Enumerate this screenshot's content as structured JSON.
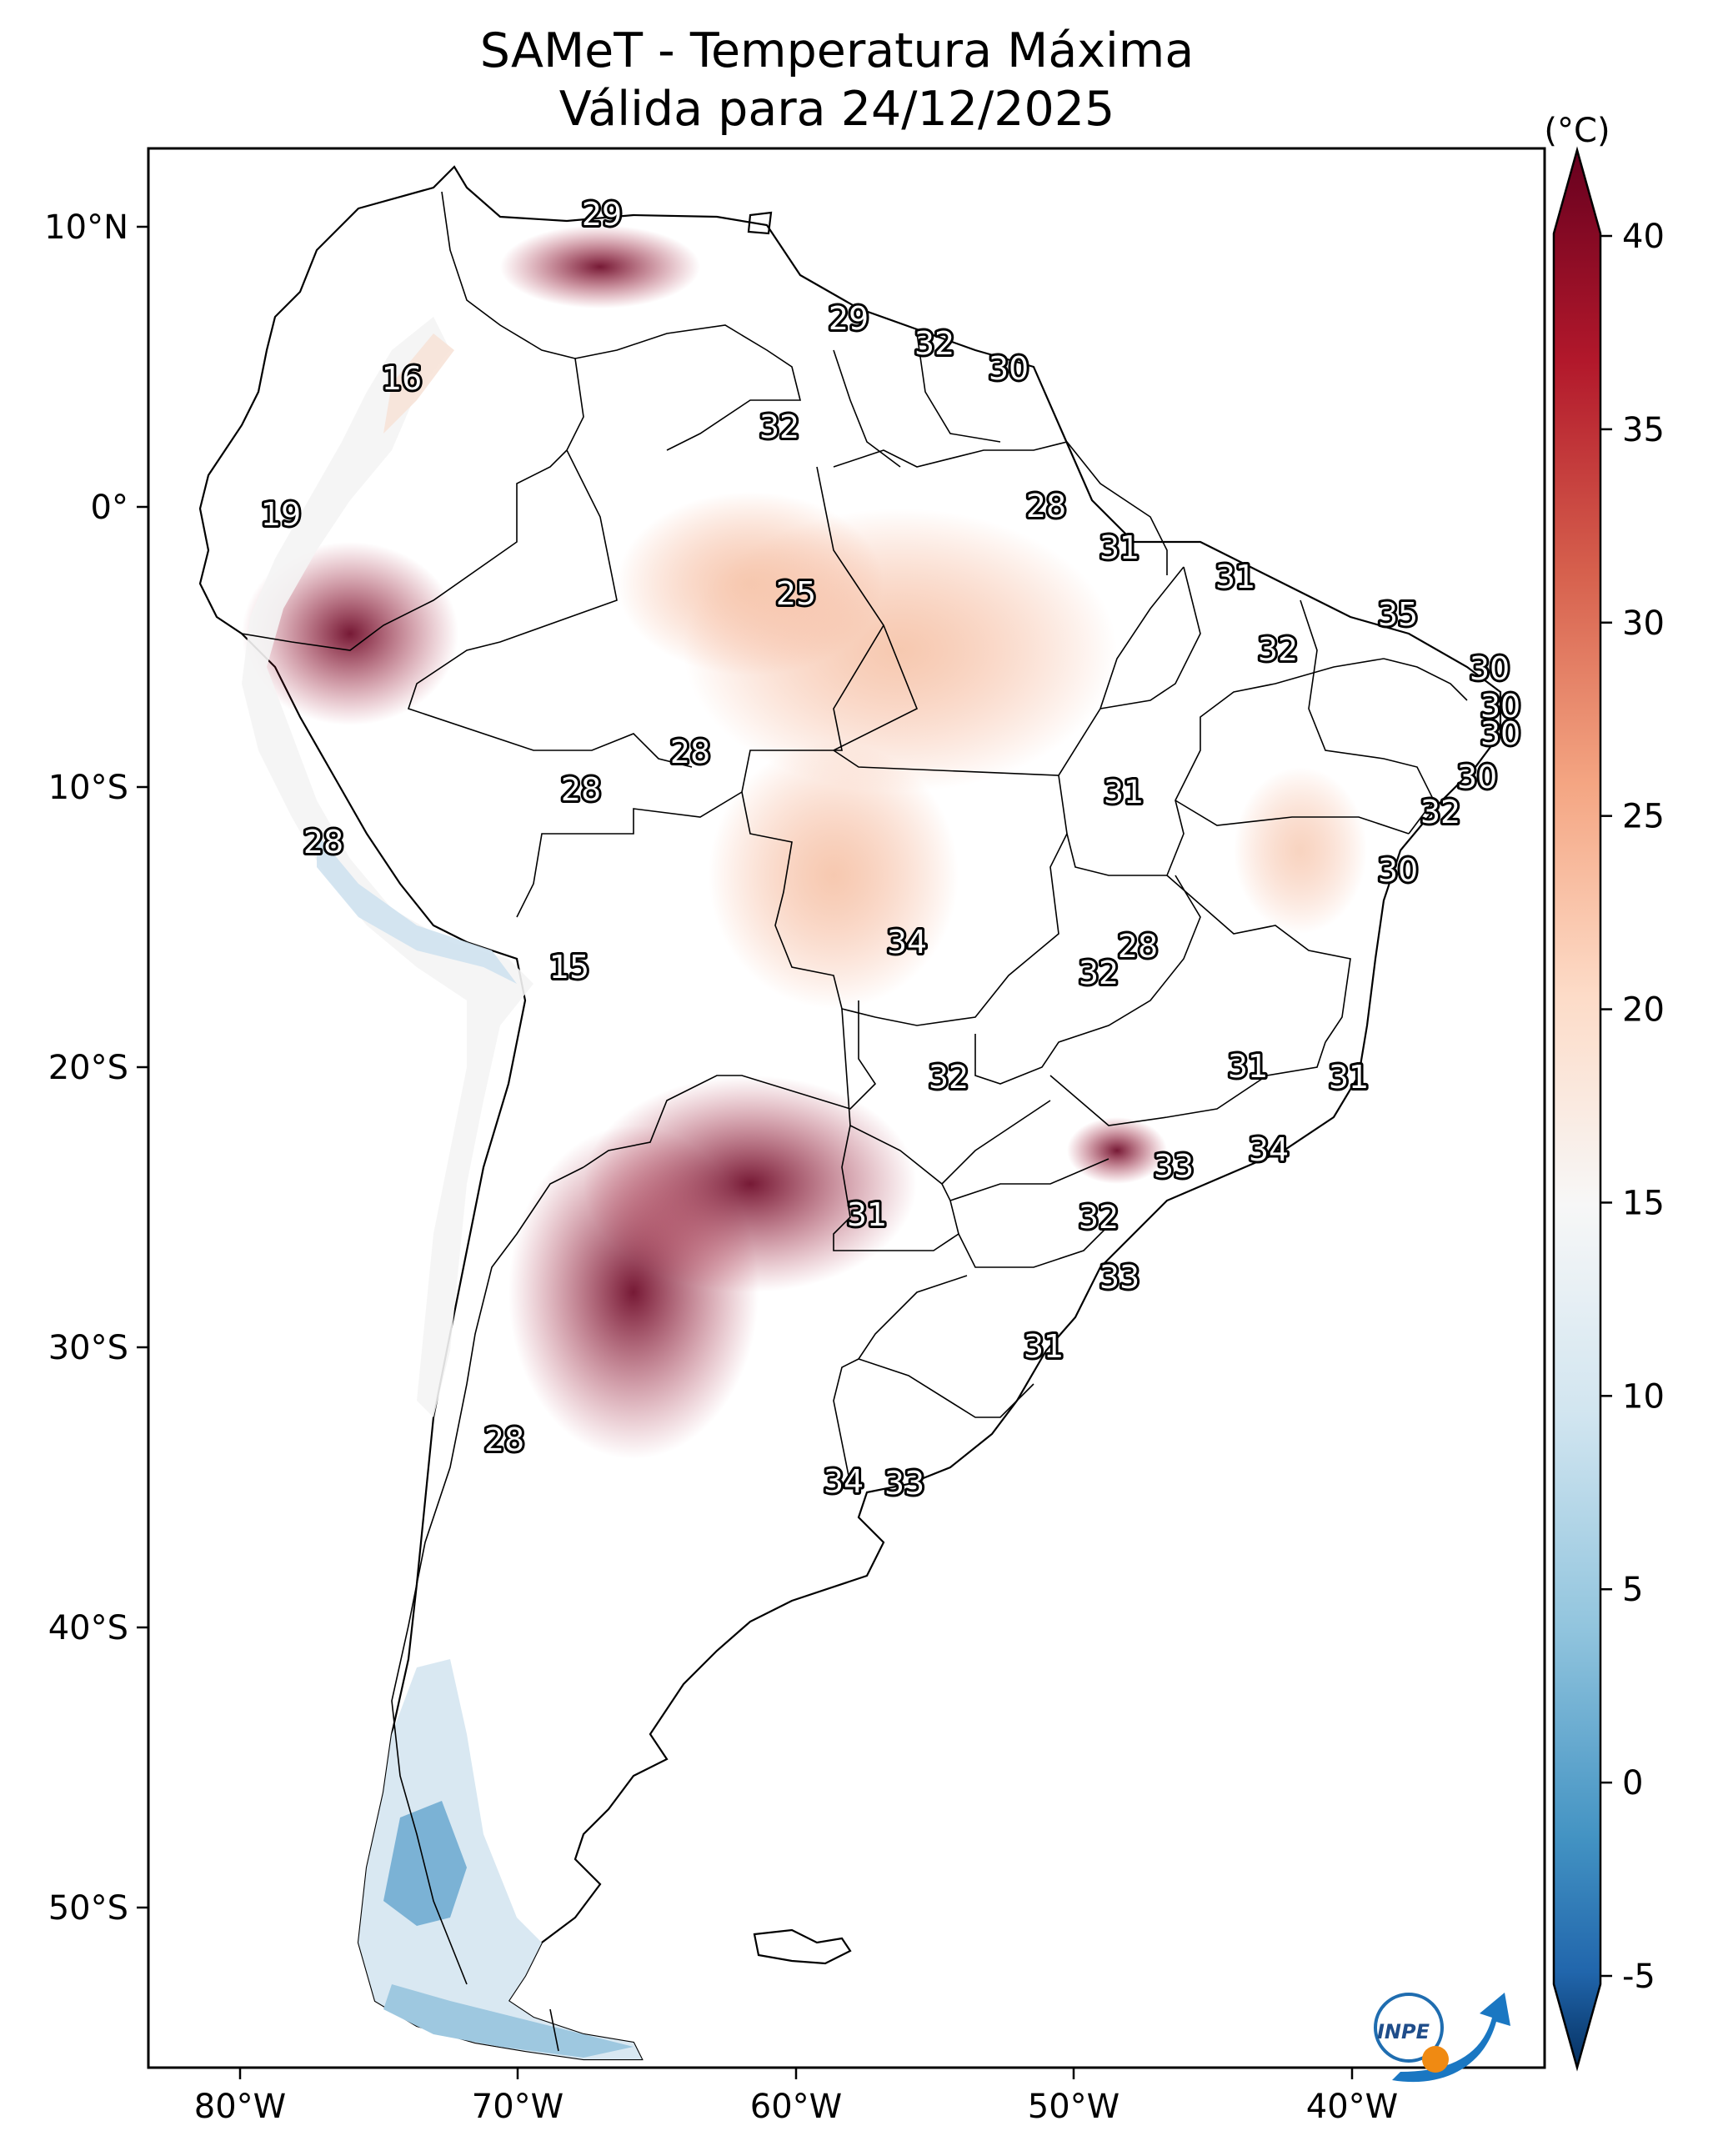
{
  "map": {
    "title_line1": "SAMeT - Temperatura Máxima",
    "title_line2": "Válida para 24/12/2025",
    "lon_ticks": [
      "80°W",
      "70°W",
      "60°W",
      "50°W",
      "40°W"
    ],
    "lat_ticks": [
      "10°N",
      "0°",
      "10°S",
      "20°S",
      "30°S",
      "40°S",
      "50°S"
    ],
    "colorbar": {
      "unit": "(°C)",
      "ticks": [
        "40",
        "35",
        "30",
        "25",
        "20",
        "15",
        "10",
        "5",
        "0",
        "-5"
      ],
      "colors": [
        "#67001f",
        "#b2182b",
        "#d6604d",
        "#f4a582",
        "#fddbc7",
        "#f7f7f7",
        "#d1e5f0",
        "#92c5de",
        "#4393c3",
        "#2166ac",
        "#053061"
      ]
    },
    "labels": [
      {
        "text": "29",
        "name": "caracas"
      },
      {
        "text": "16",
        "name": "bogota"
      },
      {
        "text": "29",
        "name": "georgetown"
      },
      {
        "text": "32",
        "name": "paramaribo"
      },
      {
        "text": "30",
        "name": "cayenne"
      },
      {
        "text": "32",
        "name": "boa-vista"
      },
      {
        "text": "19",
        "name": "quito"
      },
      {
        "text": "28",
        "name": "macapa"
      },
      {
        "text": "31",
        "name": "belem"
      },
      {
        "text": "31",
        "name": "sao-luis"
      },
      {
        "text": "35",
        "name": "fortaleza"
      },
      {
        "text": "25",
        "name": "manaus"
      },
      {
        "text": "32",
        "name": "teresina"
      },
      {
        "text": "30",
        "name": "natal"
      },
      {
        "text": "30",
        "name": "joao-pessoa"
      },
      {
        "text": "30",
        "name": "recife"
      },
      {
        "text": "28",
        "name": "porto-velho"
      },
      {
        "text": "28",
        "name": "rio-branco"
      },
      {
        "text": "31",
        "name": "palmas"
      },
      {
        "text": "30",
        "name": "maceio"
      },
      {
        "text": "32",
        "name": "aracaju"
      },
      {
        "text": "28",
        "name": "lima"
      },
      {
        "text": "30",
        "name": "salvador"
      },
      {
        "text": "34",
        "name": "cuiaba"
      },
      {
        "text": "28",
        "name": "brasilia"
      },
      {
        "text": "32",
        "name": "goiania"
      },
      {
        "text": "15",
        "name": "la-paz"
      },
      {
        "text": "31",
        "name": "belo-horizonte"
      },
      {
        "text": "31",
        "name": "vitoria"
      },
      {
        "text": "32",
        "name": "campo-grande"
      },
      {
        "text": "34",
        "name": "rio-de-janeiro"
      },
      {
        "text": "33",
        "name": "sao-paulo"
      },
      {
        "text": "31",
        "name": "asuncion"
      },
      {
        "text": "32",
        "name": "curitiba"
      },
      {
        "text": "33",
        "name": "florianopolis"
      },
      {
        "text": "31",
        "name": "porto-alegre"
      },
      {
        "text": "28",
        "name": "santiago"
      },
      {
        "text": "34",
        "name": "buenos-aires"
      },
      {
        "text": "33",
        "name": "montevideo"
      }
    ]
  }
}
